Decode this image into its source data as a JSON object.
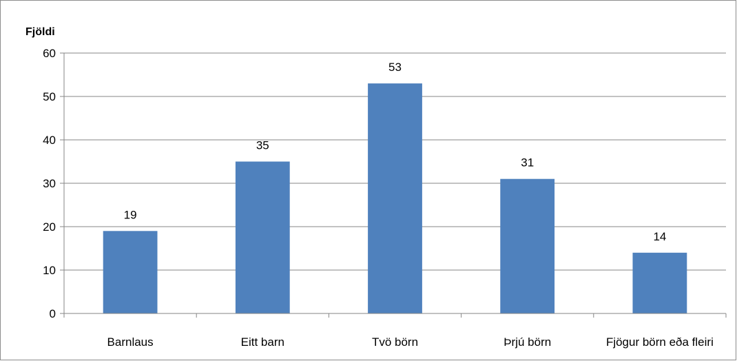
{
  "chart_data": {
    "type": "bar",
    "title": "",
    "xlabel": "",
    "ylabel": "Fjöldi",
    "categories": [
      "Barnlaus",
      "Eitt barn",
      "Tvö börn",
      "Þrjú börn",
      "Fjögur börn eða fleiri"
    ],
    "values": [
      19,
      35,
      53,
      31,
      14
    ],
    "ylim": [
      0,
      60
    ],
    "yticks": [
      0,
      10,
      20,
      30,
      40,
      50,
      60
    ],
    "grid": true,
    "legend": "none",
    "bar_color": "#4f81bd",
    "grid_color": "#868686",
    "data_labels": true
  }
}
